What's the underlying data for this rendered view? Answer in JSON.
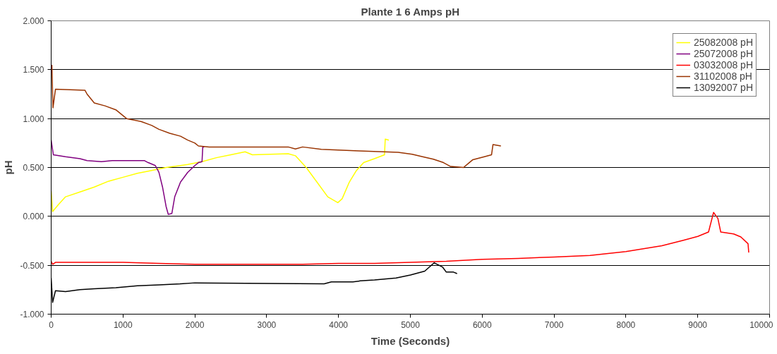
{
  "chart_data": {
    "type": "line",
    "title": "Plante 1 6 Amps pH",
    "xlabel": "Time (Seconds)",
    "ylabel": "pH",
    "xlim": [
      0,
      10000
    ],
    "xticks": [
      0,
      1000,
      2000,
      3000,
      4000,
      5000,
      6000,
      7000,
      8000,
      9000,
      10000
    ],
    "ylim": [
      -1,
      2
    ],
    "yticks": [
      {
        "value": -1,
        "label": "-1.000"
      },
      {
        "value": -0.5,
        "label": "-0.500"
      },
      {
        "value": 0,
        "label": "0.000"
      },
      {
        "value": 0.5,
        "label": "0.500"
      },
      {
        "value": 1,
        "label": "1.000"
      },
      {
        "value": 1.5,
        "label": "1.500"
      },
      {
        "value": 2,
        "label": "2.000"
      }
    ],
    "grid": "y",
    "legend": "top right",
    "marker": "none",
    "line_style": "solid",
    "series": [
      {
        "name": "25082008 pH",
        "color": "#ffff00",
        "x": [
          0,
          20,
          100,
          200,
          400,
          600,
          800,
          1000,
          1200,
          1400,
          1600,
          1900,
          2100,
          2300,
          2500,
          2700,
          2800,
          3300,
          3400,
          3550,
          3700,
          3850,
          3990,
          4050,
          4150,
          4250,
          4350,
          4500,
          4640,
          4650,
          4700
        ],
        "values": [
          0.26,
          0.05,
          0.12,
          0.2,
          0.25,
          0.3,
          0.36,
          0.4,
          0.44,
          0.47,
          0.5,
          0.53,
          0.56,
          0.6,
          0.63,
          0.66,
          0.63,
          0.64,
          0.62,
          0.5,
          0.35,
          0.2,
          0.14,
          0.18,
          0.35,
          0.47,
          0.55,
          0.59,
          0.63,
          0.79,
          0.78
        ]
      },
      {
        "name": "25072008 pH",
        "color": "#800080",
        "x": [
          0,
          30,
          200,
          400,
          500,
          700,
          850,
          1300,
          1350,
          1450,
          1500,
          1550,
          1600,
          1630,
          1680,
          1720,
          1800,
          1900,
          2000,
          2050,
          2100,
          2110,
          2130
        ],
        "values": [
          0.78,
          0.63,
          0.61,
          0.59,
          0.57,
          0.56,
          0.57,
          0.57,
          0.55,
          0.52,
          0.45,
          0.3,
          0.1,
          0.02,
          0.03,
          0.2,
          0.35,
          0.45,
          0.52,
          0.55,
          0.56,
          0.71,
          0.71
        ]
      },
      {
        "name": "03032008 pH",
        "color": "#ff0000",
        "x": [
          0,
          20,
          60,
          1000,
          1500,
          2000,
          3500,
          4000,
          4500,
          5000,
          5500,
          6000,
          6500,
          7000,
          7500,
          8000,
          8500,
          8800,
          9000,
          9150,
          9220,
          9280,
          9320,
          9500,
          9600,
          9700,
          9710
        ],
        "values": [
          -0.46,
          -0.49,
          -0.47,
          -0.47,
          -0.48,
          -0.49,
          -0.49,
          -0.48,
          -0.48,
          -0.47,
          -0.46,
          -0.44,
          -0.43,
          -0.415,
          -0.4,
          -0.36,
          -0.3,
          -0.245,
          -0.205,
          -0.16,
          0.04,
          -0.02,
          -0.16,
          -0.18,
          -0.21,
          -0.28,
          -0.37
        ]
      },
      {
        "name": "31102008 pH",
        "color": "#993300",
        "x": [
          10,
          25,
          60,
          470,
          500,
          600,
          750,
          900,
          1050,
          1250,
          1400,
          1500,
          1650,
          1800,
          1900,
          2000,
          2050,
          2200,
          3300,
          3400,
          3500,
          3760,
          4285,
          4830,
          5025,
          5170,
          5320,
          5460,
          5560,
          5740,
          5820,
          5870,
          6030,
          6130,
          6150,
          6260
        ],
        "values": [
          1.55,
          1.11,
          1.3,
          1.29,
          1.25,
          1.16,
          1.13,
          1.09,
          1.0,
          0.97,
          0.93,
          0.89,
          0.85,
          0.82,
          0.78,
          0.75,
          0.72,
          0.71,
          0.71,
          0.69,
          0.71,
          0.685,
          0.67,
          0.655,
          0.635,
          0.61,
          0.585,
          0.55,
          0.51,
          0.5,
          0.55,
          0.58,
          0.61,
          0.63,
          0.735,
          0.72
        ]
      },
      {
        "name": "13092007 pH",
        "color": "#000000",
        "x": [
          0,
          20,
          60,
          200,
          400,
          600,
          900,
          1200,
          1500,
          1800,
          2000,
          3800,
          3900,
          4200,
          4300,
          4500,
          4800,
          5000,
          5200,
          5330,
          5450,
          5500,
          5600,
          5650
        ],
        "values": [
          -0.63,
          -0.88,
          -0.76,
          -0.77,
          -0.75,
          -0.74,
          -0.73,
          -0.71,
          -0.7,
          -0.69,
          -0.68,
          -0.69,
          -0.67,
          -0.67,
          -0.66,
          -0.65,
          -0.63,
          -0.6,
          -0.56,
          -0.475,
          -0.52,
          -0.57,
          -0.57,
          -0.585
        ]
      }
    ]
  }
}
